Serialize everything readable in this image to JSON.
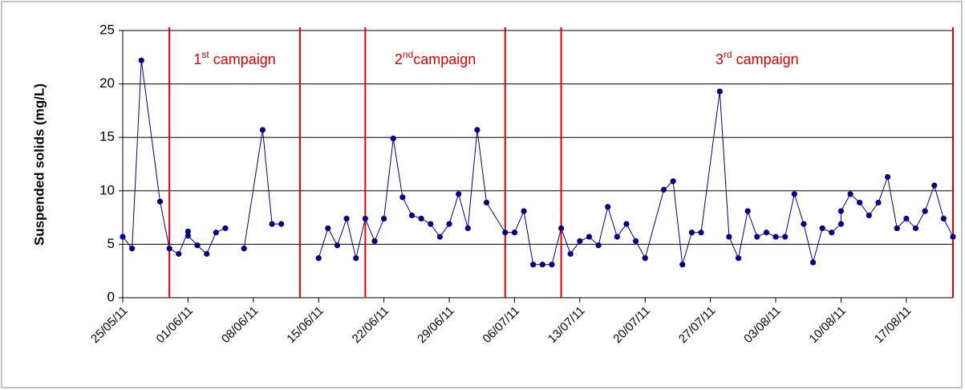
{
  "chart_data": {
    "type": "line",
    "y_label": "Suspended solids (mg/L)",
    "x": [
      "25/05/11",
      "26/05/11",
      "27/05/11",
      "29/05/11",
      "30/05/11",
      "31/05/11",
      "01/06/11",
      "01/06/11",
      "02/06/11",
      "03/06/11",
      "04/06/11",
      "05/06/11",
      "06/06/11",
      "07/06/11",
      "09/06/11",
      "10/06/11",
      "11/06/11",
      "13/06/11",
      "15/06/11",
      "16/06/11",
      "17/06/11",
      "18/06/11",
      "19/06/11",
      "20/06/11",
      "21/06/11",
      "22/06/11",
      "23/06/11",
      "24/06/11",
      "25/06/11",
      "26/06/11",
      "27/06/11",
      "28/06/11",
      "29/06/11",
      "30/06/11",
      "01/07/11",
      "02/07/11",
      "03/07/11",
      "05/07/11",
      "06/07/11",
      "07/07/11",
      "08/07/11",
      "09/07/11",
      "10/07/11",
      "11/07/11",
      "12/07/11",
      "13/07/11",
      "14/07/11",
      "15/07/11",
      "16/07/11",
      "17/07/11",
      "18/07/11",
      "19/07/11",
      "20/07/11",
      "22/07/11",
      "23/07/11",
      "24/07/11",
      "25/07/11",
      "26/07/11",
      "28/07/11",
      "29/07/11",
      "30/07/11",
      "31/07/11",
      "01/08/11",
      "02/08/11",
      "03/08/11",
      "04/08/11",
      "05/08/11",
      "06/08/11",
      "07/08/11",
      "08/08/11",
      "09/08/11",
      "10/08/11",
      "10/08/11",
      "11/08/11",
      "12/08/11",
      "13/08/11",
      "14/08/11",
      "15/08/11",
      "16/08/11",
      "17/08/11",
      "18/08/11",
      "19/08/11",
      "20/08/11",
      "21/08/11",
      "22/08/11"
    ],
    "series": [
      {
        "name": "Suspended solids",
        "color": "#000080",
        "values": [
          5.7,
          4.6,
          22.2,
          9.0,
          4.6,
          4.1,
          6.2,
          5.8,
          4.9,
          4.1,
          6.1,
          6.5,
          null,
          4.6,
          15.7,
          6.9,
          6.9,
          null,
          3.7,
          6.5,
          4.9,
          7.4,
          3.7,
          7.4,
          5.3,
          7.4,
          14.9,
          9.4,
          7.7,
          7.4,
          6.9,
          5.7,
          6.9,
          9.7,
          6.5,
          15.7,
          8.9,
          6.1,
          6.1,
          8.1,
          3.1,
          3.1,
          3.1,
          6.5,
          4.1,
          5.3,
          5.7,
          4.9,
          8.5,
          5.7,
          6.9,
          5.3,
          3.7,
          10.1,
          10.9,
          3.1,
          6.1,
          6.1,
          19.3,
          5.7,
          3.7,
          8.1,
          5.7,
          6.1,
          5.7,
          5.7,
          9.7,
          6.9,
          3.3,
          6.5,
          6.1,
          6.9,
          8.1,
          9.7,
          8.9,
          7.7,
          8.9,
          11.3,
          6.5,
          7.4,
          6.5,
          8.1,
          10.5,
          7.4,
          5.7
        ]
      }
    ],
    "xlim": [
      "25/05/11",
      "22/08/11"
    ],
    "xticks": [
      "25/05/11",
      "01/06/11",
      "08/06/11",
      "15/06/11",
      "22/06/11",
      "29/06/11",
      "06/07/11",
      "13/07/11",
      "20/07/11",
      "27/07/11",
      "03/08/11",
      "10/08/11",
      "17/08/11"
    ],
    "ylim": [
      0,
      25
    ],
    "yticks": [
      0,
      5,
      10,
      15,
      20,
      25
    ],
    "grid": true,
    "campaign_lines": {
      "color": "#e00000",
      "dates": [
        "30/05/11",
        "13/06/11",
        "20/06/11",
        "05/07/11",
        "11/07/11",
        "22/08/11"
      ]
    },
    "annotations": [
      {
        "text": "1",
        "sup": "st",
        "rest": " campaign"
      },
      {
        "text": "2",
        "sup": "nd",
        "rest": "campaign"
      },
      {
        "text": "3",
        "sup": "rd",
        "rest": " campaign"
      }
    ]
  }
}
